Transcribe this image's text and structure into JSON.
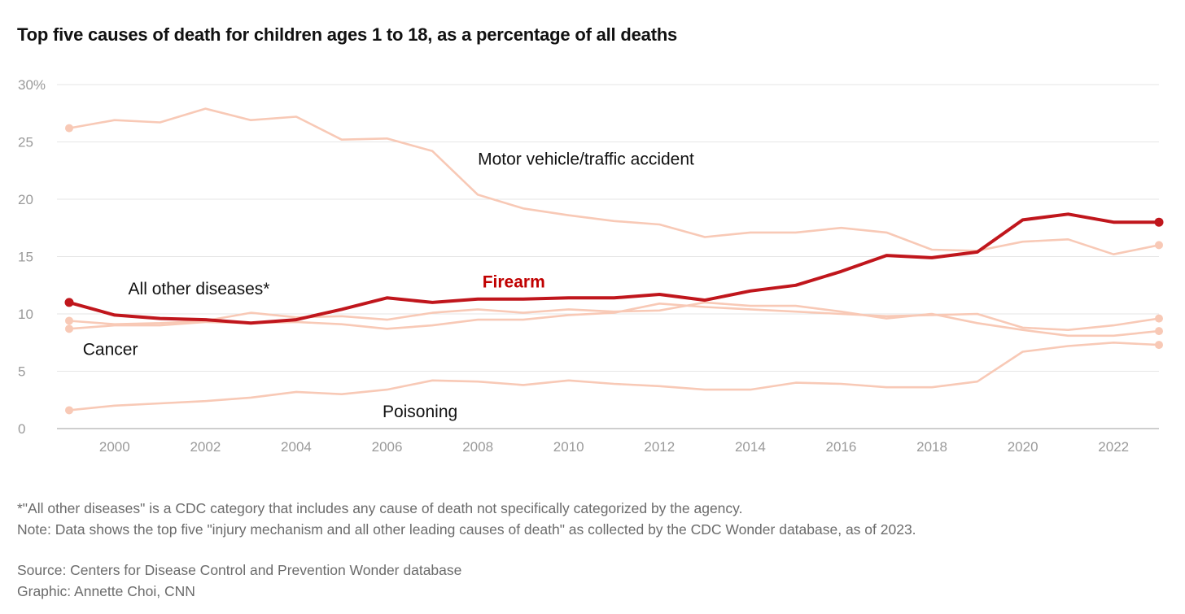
{
  "title": "Top five causes of death for children ages 1 to 18, as a percentage of all deaths",
  "notes": [
    "*\"All other diseases\" is a CDC category that includes any cause of death not specifically categorized by the agency.",
    "Note: Data shows the top five \"injury mechanism and all other leading causes of death\" as collected by the CDC Wonder database, as of 2023."
  ],
  "source": "Source: Centers for Disease Control and Prevention Wonder database",
  "credit": "Graphic: Annette Choi, CNN",
  "colors": {
    "highlight": "#c0161c",
    "muted": "#f8c9b6",
    "grid": "#e6e6e6",
    "axis": "#bdbdbd"
  },
  "chart_data": {
    "type": "line",
    "x": [
      1999,
      2000,
      2001,
      2002,
      2003,
      2004,
      2005,
      2006,
      2007,
      2008,
      2009,
      2010,
      2011,
      2012,
      2013,
      2014,
      2015,
      2016,
      2017,
      2018,
      2019,
      2020,
      2021,
      2022,
      2023
    ],
    "xticks": [
      2000,
      2002,
      2004,
      2006,
      2008,
      2010,
      2012,
      2014,
      2016,
      2018,
      2020,
      2022
    ],
    "yticks": [
      0,
      5,
      10,
      15,
      20,
      25,
      30
    ],
    "ytick_labels": [
      "0",
      "5",
      "10",
      "15",
      "20",
      "25",
      "30%"
    ],
    "ylim": [
      0,
      30
    ],
    "xlim": [
      1999,
      2023
    ],
    "grid": true,
    "series": [
      {
        "name": "Motor vehicle/traffic accident",
        "highlight": false,
        "values": [
          26.2,
          26.9,
          26.7,
          27.9,
          26.9,
          27.2,
          25.2,
          25.3,
          24.2,
          20.4,
          19.2,
          18.6,
          18.1,
          17.8,
          16.7,
          17.1,
          17.1,
          17.5,
          17.1,
          15.6,
          15.5,
          16.3,
          16.5,
          15.2,
          16.0
        ]
      },
      {
        "name": "All other diseases*",
        "highlight": false,
        "values": [
          9.4,
          9.1,
          9.2,
          9.4,
          10.1,
          9.7,
          9.8,
          9.5,
          10.1,
          10.4,
          10.1,
          10.4,
          10.2,
          10.3,
          11.0,
          10.7,
          10.7,
          10.2,
          9.6,
          10.0,
          9.2,
          8.6,
          8.1,
          8.1,
          8.5
        ]
      },
      {
        "name": "Cancer",
        "highlight": false,
        "values": [
          8.7,
          9.0,
          9.0,
          9.3,
          9.2,
          9.3,
          9.1,
          8.7,
          9.0,
          9.5,
          9.5,
          9.9,
          10.1,
          10.9,
          10.6,
          10.4,
          10.2,
          10.0,
          9.8,
          9.9,
          10.0,
          8.8,
          8.6,
          9.0,
          9.6
        ]
      },
      {
        "name": "Poisoning",
        "highlight": false,
        "values": [
          1.6,
          2.0,
          2.2,
          2.4,
          2.7,
          3.2,
          3.0,
          3.4,
          4.2,
          4.1,
          3.8,
          4.2,
          3.9,
          3.7,
          3.4,
          3.4,
          4.0,
          3.9,
          3.6,
          3.6,
          4.1,
          6.7,
          7.2,
          7.5,
          7.3
        ]
      },
      {
        "name": "Firearm",
        "highlight": true,
        "values": [
          11.0,
          9.9,
          9.6,
          9.5,
          9.2,
          9.5,
          10.4,
          11.4,
          11.0,
          11.3,
          11.3,
          11.4,
          11.4,
          11.7,
          11.2,
          12.0,
          12.5,
          13.7,
          15.1,
          14.9,
          15.4,
          18.2,
          18.7,
          18.0,
          18.0
        ]
      }
    ],
    "annotations": [
      {
        "text": "Motor vehicle/traffic accident",
        "x": 2008,
        "y": 23.5
      },
      {
        "text": "All other diseases*",
        "x": 2000.3,
        "y": 12.2
      },
      {
        "text": "Firearm",
        "x": 2008.1,
        "y": 12.8,
        "highlight": true
      },
      {
        "text": "Cancer",
        "x": 1999.3,
        "y": 6.9
      },
      {
        "text": "Poisoning",
        "x": 2005.9,
        "y": 1.5
      }
    ]
  }
}
